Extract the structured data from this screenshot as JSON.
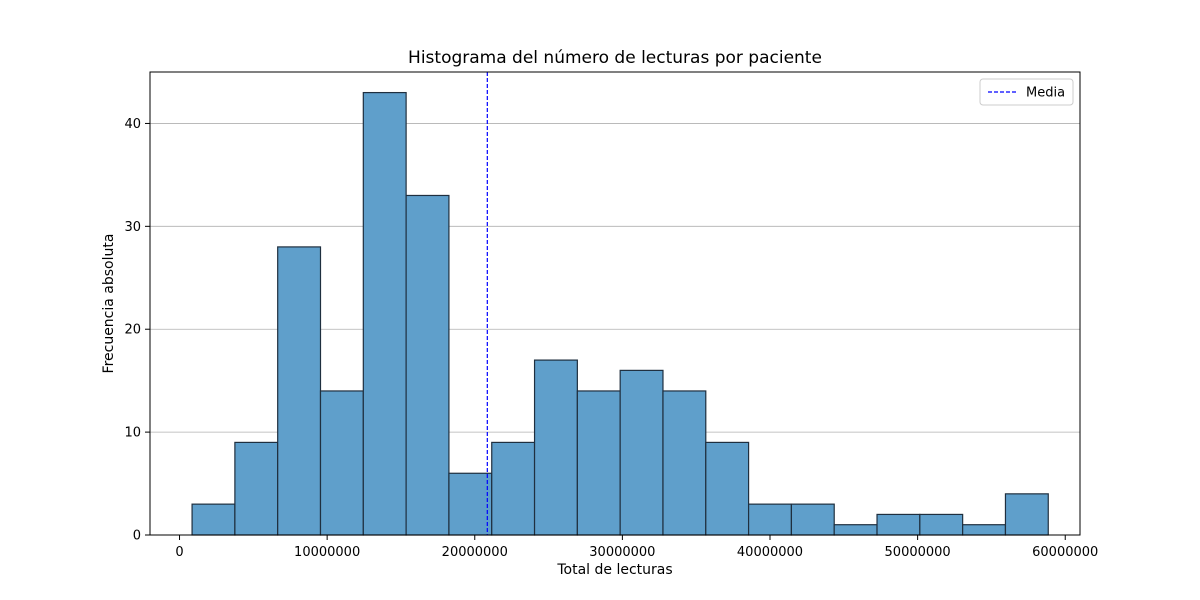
{
  "chart_data": {
    "type": "bar",
    "title": "Histograma del número de lecturas por paciente",
    "xlabel": "Total de lecturas",
    "ylabel": "Frecuencia absoluta",
    "bin_start": 850000,
    "bin_width": 2900000,
    "values": [
      3,
      9,
      28,
      14,
      43,
      33,
      6,
      9,
      17,
      14,
      16,
      14,
      9,
      3,
      3,
      1,
      2,
      2,
      1,
      4
    ],
    "bar_color": "#5f9fcb",
    "bar_edge_color": "#1f2f3f",
    "mean": 20850000,
    "mean_label": "Media",
    "mean_color": "#0000ff",
    "xlim": [
      -2000000,
      61000000
    ],
    "ylim": [
      0,
      45
    ],
    "xticks": [
      0,
      10000000,
      20000000,
      30000000,
      40000000,
      50000000,
      60000000
    ],
    "xtick_labels": [
      "0",
      "10000000",
      "20000000",
      "30000000",
      "40000000",
      "50000000",
      "60000000"
    ],
    "yticks": [
      0,
      10,
      20,
      30,
      40
    ],
    "ytick_labels": [
      "0",
      "10",
      "20",
      "30",
      "40"
    ],
    "grid": "y",
    "legend": "top-right"
  }
}
